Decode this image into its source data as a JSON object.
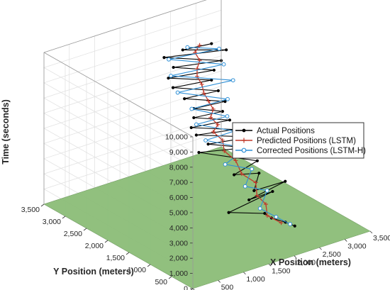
{
  "chart_data": {
    "type": "line3d",
    "xlabel": "X Position (meters)",
    "ylabel": "Y Position (meters)",
    "zlabel": "Time (seconds)",
    "xlim": [
      0,
      3500
    ],
    "ylim": [
      0,
      3500
    ],
    "zlim": [
      0,
      10000
    ],
    "x_ticks": [
      0,
      500,
      1000,
      1500,
      2000,
      2500,
      3000,
      3500
    ],
    "y_ticks": [
      0,
      500,
      1000,
      1500,
      2000,
      2500,
      3000,
      3500
    ],
    "z_ticks": [
      0,
      1000,
      2000,
      3000,
      4000,
      5000,
      6000,
      7000,
      8000,
      9000,
      10000
    ],
    "x_tick_labels": [
      "0",
      "500",
      "1,000",
      "1,500",
      "2,000",
      "2,500",
      "3,000",
      "3,500"
    ],
    "y_tick_labels": [
      "0",
      "500",
      "1,000",
      "1,500",
      "2,000",
      "2,500",
      "3,000",
      "3,500"
    ],
    "z_tick_labels": [
      "0",
      "1,000",
      "2,000",
      "3,000",
      "4,000",
      "5,000",
      "6,000",
      "7,000",
      "8,000",
      "9,000",
      "10,000"
    ],
    "grid": true,
    "ground_plane_color": "#8cbd78",
    "legend_position": "right",
    "series": [
      {
        "name": "Actual Positions",
        "color": "#000000",
        "marker": "dot",
        "points": [
          [
            2600,
            700,
            200
          ],
          [
            2500,
            800,
            400
          ],
          [
            2350,
            950,
            600
          ],
          [
            2300,
            1050,
            800
          ],
          [
            1800,
            1300,
            1000
          ],
          [
            2750,
            1400,
            1200
          ],
          [
            2200,
            1300,
            1400
          ],
          [
            3000,
            1400,
            1600
          ],
          [
            2300,
            1300,
            1900
          ],
          [
            2650,
            1600,
            2200
          ],
          [
            2200,
            1650,
            2500
          ],
          [
            2700,
            1700,
            2800
          ],
          [
            2050,
            2300,
            3100
          ],
          [
            2650,
            1900,
            3400
          ],
          [
            2150,
            2200,
            3700
          ],
          [
            2750,
            1900,
            4000
          ],
          [
            2000,
            2300,
            4300
          ],
          [
            2500,
            2000,
            4600
          ],
          [
            1900,
            2300,
            4900
          ],
          [
            2450,
            2050,
            5200
          ],
          [
            1950,
            2300,
            5500
          ],
          [
            2350,
            2100,
            5800
          ],
          [
            1950,
            2300,
            6100
          ],
          [
            2400,
            2100,
            6400
          ],
          [
            1850,
            2400,
            6700
          ],
          [
            2350,
            2200,
            7000
          ],
          [
            1750,
            2550,
            7300
          ],
          [
            2300,
            2300,
            7600
          ],
          [
            1700,
            2600,
            7900
          ],
          [
            2350,
            2300,
            8200
          ],
          [
            1800,
            2600,
            8500
          ],
          [
            2450,
            2250,
            8800
          ],
          [
            1700,
            2700,
            9100
          ],
          [
            2550,
            2250,
            9400
          ],
          [
            1900,
            2500,
            9700
          ],
          [
            2300,
            2300,
            10000
          ]
        ]
      },
      {
        "name": "Predicted Positions (LSTM)",
        "color": "#c0392b",
        "marker": "plus",
        "points": [
          [
            2500,
            900,
            200
          ],
          [
            2350,
            1050,
            600
          ],
          [
            2450,
            1200,
            1000
          ],
          [
            2400,
            1350,
            1400
          ],
          [
            2500,
            1500,
            1900
          ],
          [
            2350,
            1650,
            2400
          ],
          [
            2400,
            1850,
            2900
          ],
          [
            2300,
            2000,
            3400
          ],
          [
            2350,
            2100,
            3900
          ],
          [
            2250,
            2200,
            4400
          ],
          [
            2300,
            2150,
            4900
          ],
          [
            2200,
            2200,
            5400
          ],
          [
            2250,
            2200,
            5900
          ],
          [
            2200,
            2250,
            6400
          ],
          [
            2150,
            2300,
            6900
          ],
          [
            2150,
            2350,
            7400
          ],
          [
            2100,
            2400,
            7900
          ],
          [
            2100,
            2400,
            8400
          ],
          [
            2150,
            2400,
            8900
          ],
          [
            2100,
            2450,
            9400
          ],
          [
            2150,
            2400,
            9900
          ]
        ]
      },
      {
        "name": "Corrected Positions (LSTM-H)",
        "color": "#2e8fd6",
        "marker": "circle",
        "points": [
          [
            2550,
            750,
            300
          ],
          [
            2400,
            900,
            700
          ],
          [
            2250,
            1100,
            1100
          ],
          [
            2600,
            1350,
            1500
          ],
          [
            2250,
            1450,
            2000
          ],
          [
            2550,
            1650,
            2500
          ],
          [
            2150,
            1800,
            3000
          ],
          [
            2600,
            1850,
            3500
          ],
          [
            2100,
            2200,
            4000
          ],
          [
            2500,
            2000,
            4500
          ],
          [
            2000,
            2300,
            5000
          ],
          [
            2400,
            2050,
            5500
          ],
          [
            1950,
            2350,
            6000
          ],
          [
            2450,
            2100,
            6500
          ],
          [
            1800,
            2500,
            7000
          ],
          [
            2600,
            2150,
            7500
          ],
          [
            1750,
            2600,
            8000
          ],
          [
            2500,
            2250,
            8500
          ],
          [
            1750,
            2650,
            9000
          ],
          [
            2450,
            2300,
            9500
          ],
          [
            1950,
            2450,
            9900
          ]
        ]
      }
    ]
  }
}
